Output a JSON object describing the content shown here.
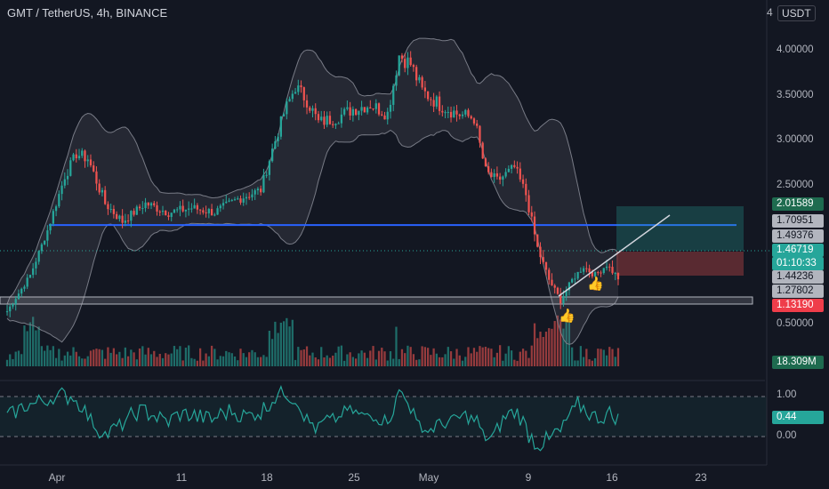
{
  "header": {
    "title": "GMT / TetherUS, 4h, BINANCE"
  },
  "currency": {
    "lead": "4",
    "unit": "USDT"
  },
  "price_axis": {
    "ticks": [
      {
        "value": 4.0,
        "label": "4.00000"
      },
      {
        "value": 3.5,
        "label": "3.50000"
      },
      {
        "value": 3.0,
        "label": "3.00000"
      },
      {
        "value": 2.5,
        "label": "2.50000"
      }
    ]
  },
  "price_labels": [
    {
      "value": 2.01589,
      "label": "2.01589",
      "bg": "#1e6b4f",
      "fg": "#ffffff"
    },
    {
      "value": 1.70951,
      "label": "1.70951",
      "bg": "#b2b5be",
      "fg": "#131722"
    },
    {
      "value": 1.49376,
      "label": "1.49376",
      "bg": "#b2b5be",
      "fg": "#131722"
    },
    {
      "value": 1.46719,
      "label": "1.46719",
      "bg": "#26a69a",
      "fg": "#ffffff"
    },
    {
      "value": 1.34,
      "label": "01:10:33",
      "bg": "#26a69a",
      "fg": "#ffffff"
    },
    {
      "value": 1.44236,
      "label": "1.44236",
      "bg": "#b2b5be",
      "fg": "#131722"
    },
    {
      "value": 1.27802,
      "label": "1.27802",
      "bg": "#b2b5be",
      "fg": "#131722"
    },
    {
      "value": 1.1319,
      "label": "1.13190",
      "bg": "#ef3d4a",
      "fg": "#ffffff"
    }
  ],
  "volume_axis": {
    "label": "0.50000",
    "value_label": "18.309M"
  },
  "oscillator": {
    "ticks": [
      {
        "value": 1.0,
        "label": "1.00"
      },
      {
        "value": 0.0,
        "label": "0.00"
      }
    ],
    "current_label": "0.44"
  },
  "x_axis": {
    "ticks": [
      "Apr",
      "11",
      "18",
      "25",
      "May",
      "9",
      "16",
      "23"
    ]
  },
  "colors": {
    "up": "#26a69a",
    "down": "#ef5350",
    "band": "#787b86",
    "support": "#2962ff",
    "oscillator": "#26a69a"
  },
  "chart_data": {
    "type": "candlestick",
    "symbol": "GMT / TetherUS",
    "interval": "4h",
    "exchange": "BINANCE",
    "ylim": [
      1.0,
      4.2
    ],
    "support_level": 2.06,
    "lower_zone": 1.2,
    "close_path": [
      {
        "t": 0,
        "c": 1.1
      },
      {
        "t": 4,
        "c": 1.3
      },
      {
        "t": 8,
        "c": 1.5
      },
      {
        "t": 14,
        "c": 2.0
      },
      {
        "t": 20,
        "c": 2.6
      },
      {
        "t": 24,
        "c": 2.85
      },
      {
        "t": 28,
        "c": 2.8
      },
      {
        "t": 34,
        "c": 2.3
      },
      {
        "t": 40,
        "c": 2.1
      },
      {
        "t": 48,
        "c": 2.3
      },
      {
        "t": 56,
        "c": 2.2
      },
      {
        "t": 64,
        "c": 2.25
      },
      {
        "t": 72,
        "c": 2.2
      },
      {
        "t": 80,
        "c": 2.35
      },
      {
        "t": 88,
        "c": 2.45
      },
      {
        "t": 92,
        "c": 2.9
      },
      {
        "t": 96,
        "c": 3.3
      },
      {
        "t": 100,
        "c": 3.6
      },
      {
        "t": 104,
        "c": 3.45
      },
      {
        "t": 108,
        "c": 3.2
      },
      {
        "t": 114,
        "c": 3.25
      },
      {
        "t": 120,
        "c": 3.35
      },
      {
        "t": 126,
        "c": 3.4
      },
      {
        "t": 132,
        "c": 3.3
      },
      {
        "t": 136,
        "c": 3.95
      },
      {
        "t": 140,
        "c": 3.85
      },
      {
        "t": 144,
        "c": 3.55
      },
      {
        "t": 150,
        "c": 3.4
      },
      {
        "t": 156,
        "c": 3.3
      },
      {
        "t": 162,
        "c": 3.25
      },
      {
        "t": 166,
        "c": 2.65
      },
      {
        "t": 170,
        "c": 2.55
      },
      {
        "t": 176,
        "c": 2.7
      },
      {
        "t": 180,
        "c": 2.4
      },
      {
        "t": 184,
        "c": 1.8
      },
      {
        "t": 188,
        "c": 1.45
      },
      {
        "t": 192,
        "c": 1.22
      },
      {
        "t": 196,
        "c": 1.45
      },
      {
        "t": 200,
        "c": 1.6
      },
      {
        "t": 204,
        "c": 1.5
      },
      {
        "t": 208,
        "c": 1.62
      },
      {
        "t": 212,
        "c": 1.47
      }
    ]
  }
}
